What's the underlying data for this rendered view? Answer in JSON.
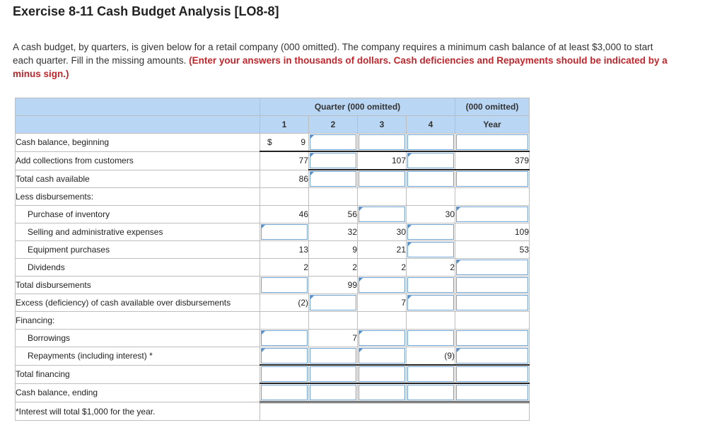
{
  "title": "Exercise 8-11 Cash Budget Analysis [LO8-8]",
  "intro": {
    "text": "A cash budget, by quarters, is given below for a retail company (000 omitted). The company requires a minimum cash balance of at least $3,000 to start each quarter. Fill in the missing amounts. ",
    "instruction": "(Enter your answers in thousands of dollars. Cash deficiencies and Repayments should be indicated by a minus sign.)"
  },
  "header": {
    "quarter_group": "Quarter (000 omitted)",
    "year_group": "(000 omitted)",
    "q1": "1",
    "q2": "2",
    "q3": "3",
    "q4": "4",
    "year": "Year"
  },
  "rows": {
    "cash_beginning": {
      "label": "Cash balance, beginning",
      "dollar": "$",
      "q1": "9"
    },
    "collections": {
      "label": "Add collections from customers",
      "q1": "77",
      "q3": "107",
      "year": "379"
    },
    "total_available": {
      "label": "Total cash available",
      "q1": "86"
    },
    "less_disb": {
      "label": "Less disbursements:"
    },
    "inventory": {
      "label": "Purchase of inventory",
      "q1": "46",
      "q2": "56",
      "q4": "30"
    },
    "sga": {
      "label": "Selling and administrative expenses",
      "q2": "32",
      "q3": "30",
      "year": "109"
    },
    "equipment": {
      "label": "Equipment purchases",
      "q1": "13",
      "q2": "9",
      "q3": "21",
      "year": "53"
    },
    "dividends": {
      "label": "Dividends",
      "q1": "2",
      "q2": "2",
      "q3": "2",
      "q4": "2"
    },
    "total_disb": {
      "label": "Total disbursements",
      "q2": "99"
    },
    "excess": {
      "label": "Excess (deficiency) of cash available over disbursements",
      "q1": "(2)",
      "q3": "7"
    },
    "financing": {
      "label": "Financing:"
    },
    "borrowings": {
      "label": "Borrowings",
      "q2": "7"
    },
    "repayments": {
      "label": "Repayments (including interest) *",
      "q4": "(9)"
    },
    "total_financing": {
      "label": "Total financing"
    },
    "cash_ending": {
      "label": "Cash balance, ending"
    },
    "footnote": {
      "label": "*Interest will total $1,000 for the year."
    }
  }
}
